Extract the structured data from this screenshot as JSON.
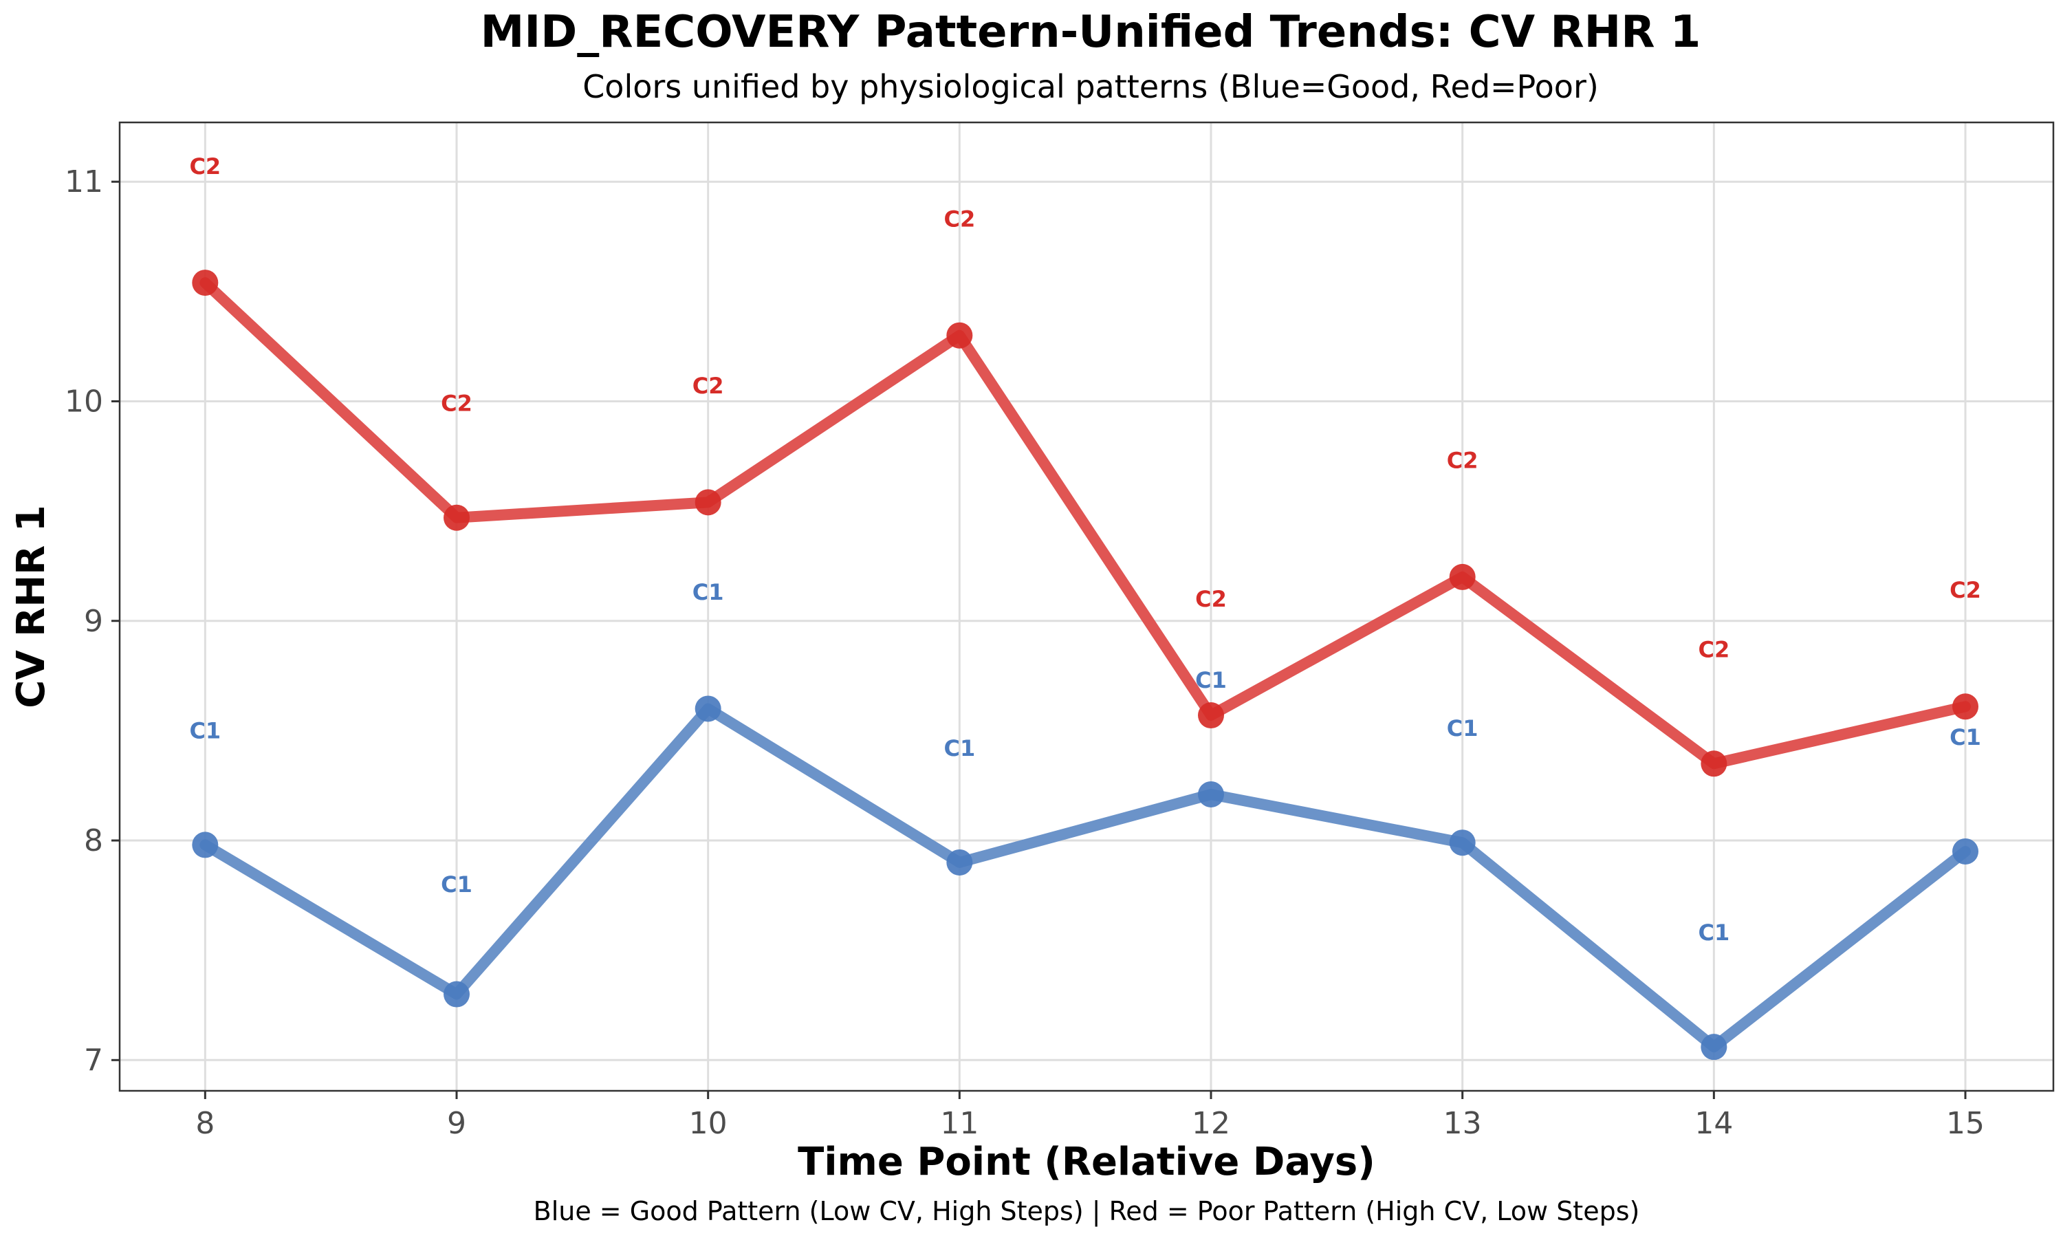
{
  "chart_data": {
    "type": "line",
    "title": "MID_RECOVERY Pattern-Unified Trends: CV RHR 1",
    "subtitle": "Colors unified by physiological patterns (Blue=Good, Red=Poor)",
    "xlabel": "Time Point (Relative Days)",
    "ylabel": "CV RHR 1",
    "caption": "Blue = Good Pattern (Low CV, High Steps) | Red = Poor Pattern (High CV, Low Steps)",
    "x": [
      8,
      9,
      10,
      11,
      12,
      13,
      14,
      15
    ],
    "xlim": [
      7.66,
      15.35
    ],
    "ylim": [
      6.86,
      11.27
    ],
    "yticks": [
      7,
      8,
      9,
      10,
      11
    ],
    "grid": true,
    "series": [
      {
        "label": "C1",
        "color": "#4a7bbf",
        "line_color": "#6b93c9",
        "values": [
          7.98,
          7.3,
          8.6,
          7.9,
          8.21,
          7.99,
          7.06,
          7.95
        ],
        "label_y": [
          8.5,
          7.8,
          9.13,
          8.42,
          8.73,
          8.51,
          7.58,
          8.47
        ]
      },
      {
        "label": "C2",
        "color": "#d62c28",
        "line_color": "#e05553",
        "values": [
          10.54,
          9.47,
          9.54,
          10.3,
          8.57,
          9.2,
          8.35,
          8.61
        ],
        "label_y": [
          11.07,
          9.99,
          10.07,
          10.83,
          9.1,
          9.73,
          8.87,
          9.14
        ]
      }
    ]
  }
}
